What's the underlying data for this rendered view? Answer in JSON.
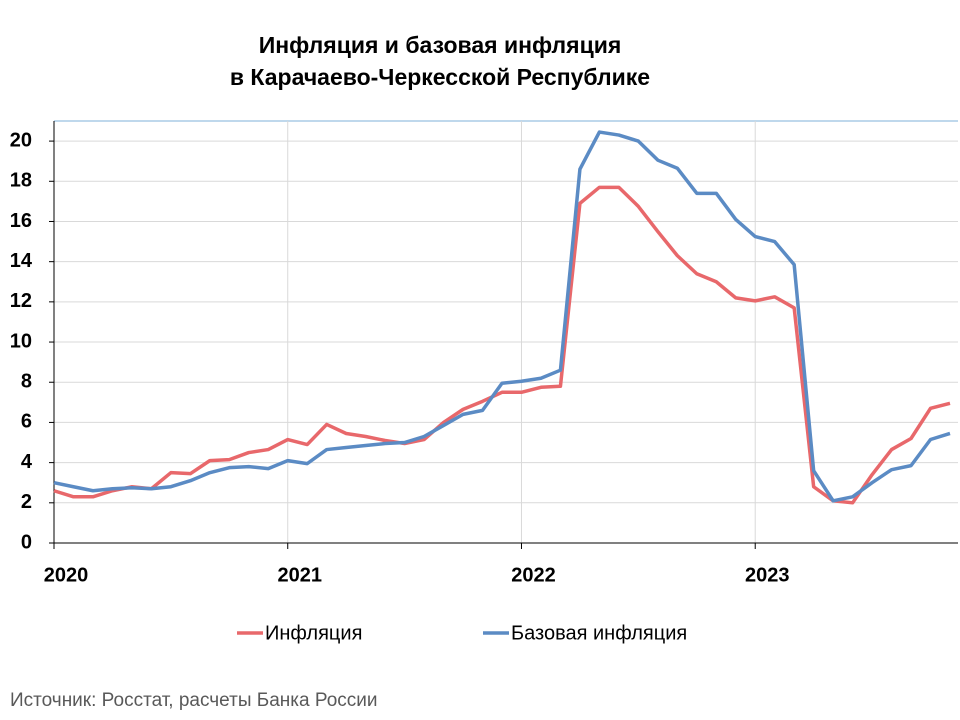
{
  "chart_data": {
    "type": "line",
    "title": [
      "Инфляция и базовая инфляция",
      "в Карачаево-Черкесской Республике"
    ],
    "categories": [
      "2020",
      null,
      null,
      null,
      null,
      null,
      null,
      null,
      null,
      null,
      null,
      null,
      "2021",
      null,
      null,
      null,
      null,
      null,
      null,
      null,
      null,
      null,
      null,
      null,
      "2022",
      null,
      null,
      null,
      null,
      null,
      null,
      null,
      null,
      null,
      null,
      null,
      "2023",
      null,
      null,
      null,
      null,
      null,
      null,
      null,
      null,
      null,
      null
    ],
    "series": [
      {
        "name": "Инфляция",
        "color": "#e8686b",
        "values": [
          2.6,
          2.3,
          2.3,
          2.6,
          2.8,
          2.7,
          3.5,
          3.45,
          4.1,
          4.15,
          4.5,
          4.65,
          5.15,
          4.9,
          5.9,
          5.45,
          5.3,
          5.1,
          4.95,
          5.15,
          6.0,
          6.65,
          7.05,
          7.5,
          7.5,
          7.75,
          7.8,
          16.9,
          17.7,
          17.7,
          16.75,
          15.5,
          14.3,
          13.4,
          13.0,
          12.2,
          12.05,
          12.25,
          11.7,
          2.8,
          2.1,
          2.0,
          3.4,
          4.65,
          5.2,
          6.7,
          6.95
        ]
      },
      {
        "name": "Базовая инфляция",
        "color": "#5b8bc4",
        "values": [
          3.0,
          2.8,
          2.6,
          2.7,
          2.75,
          2.7,
          2.8,
          3.1,
          3.5,
          3.75,
          3.8,
          3.7,
          4.1,
          3.95,
          4.65,
          4.75,
          4.85,
          4.95,
          5.0,
          5.3,
          5.85,
          6.4,
          6.6,
          7.95,
          8.05,
          8.2,
          8.6,
          18.6,
          20.45,
          20.3,
          20.0,
          19.05,
          18.65,
          17.4,
          17.4,
          16.1,
          15.25,
          15.0,
          13.85,
          3.6,
          2.1,
          2.3,
          3.0,
          3.65,
          3.85,
          5.15,
          5.45
        ]
      }
    ],
    "ylim": [
      0,
      21
    ],
    "yticks": [
      0,
      2,
      4,
      6,
      8,
      10,
      12,
      14,
      16,
      18,
      20
    ],
    "grid": true,
    "source": "Источник: Росстат, расчеты Банка России"
  }
}
